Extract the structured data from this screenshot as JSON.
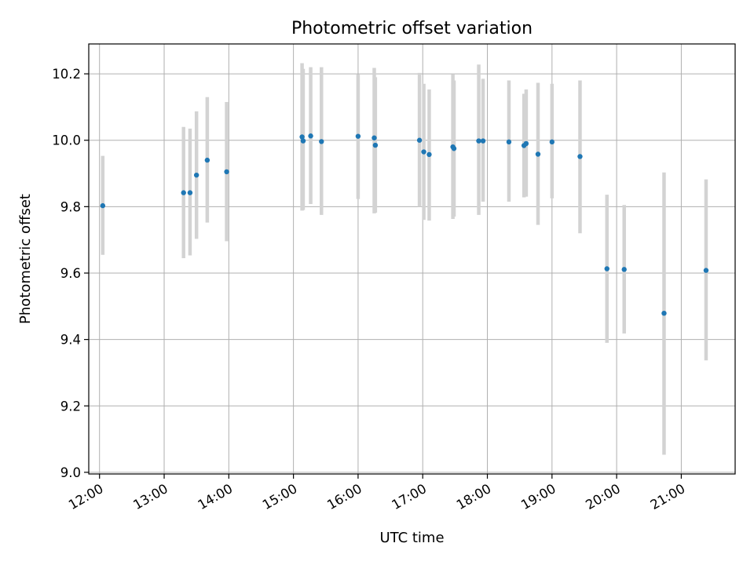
{
  "chart_data": {
    "type": "scatter",
    "title": "Photometric offset variation",
    "xlabel": "UTC time",
    "ylabel": "Photometric offset",
    "xlim": [
      "11:50",
      "21:50"
    ],
    "ylim": [
      8.995,
      10.29
    ],
    "xticks": [
      "12:00",
      "13:00",
      "14:00",
      "15:00",
      "16:00",
      "17:00",
      "18:00",
      "19:00",
      "20:00",
      "21:00"
    ],
    "yticks": [
      9.0,
      9.2,
      9.4,
      9.6,
      9.8,
      10.0,
      10.2
    ],
    "grid": true,
    "point_color": "#1f77b4",
    "errorbar_color": "#d3d3d3",
    "points": [
      {
        "t": "12:03",
        "y": 9.803,
        "lo": 9.655,
        "hi": 9.953
      },
      {
        "t": "13:18",
        "y": 9.842,
        "lo": 9.645,
        "hi": 10.04
      },
      {
        "t": "13:24",
        "y": 9.842,
        "lo": 9.653,
        "hi": 10.035
      },
      {
        "t": "13:30",
        "y": 9.895,
        "lo": 9.703,
        "hi": 10.087
      },
      {
        "t": "13:40",
        "y": 9.94,
        "lo": 9.752,
        "hi": 10.13
      },
      {
        "t": "13:58",
        "y": 9.905,
        "lo": 9.696,
        "hi": 10.115
      },
      {
        "t": "15:08",
        "y": 10.01,
        "lo": 9.788,
        "hi": 10.232
      },
      {
        "t": "15:09",
        "y": 9.998,
        "lo": 9.79,
        "hi": 10.215
      },
      {
        "t": "15:16",
        "y": 10.013,
        "lo": 9.808,
        "hi": 10.22
      },
      {
        "t": "15:26",
        "y": 9.996,
        "lo": 9.775,
        "hi": 10.22
      },
      {
        "t": "16:00",
        "y": 10.012,
        "lo": 9.823,
        "hi": 10.198
      },
      {
        "t": "16:15",
        "y": 10.007,
        "lo": 9.78,
        "hi": 10.218
      },
      {
        "t": "16:16",
        "y": 9.985,
        "lo": 9.782,
        "hi": 10.19
      },
      {
        "t": "16:57",
        "y": 10.0,
        "lo": 9.8,
        "hi": 10.203
      },
      {
        "t": "17:01",
        "y": 9.965,
        "lo": 9.76,
        "hi": 10.17
      },
      {
        "t": "17:06",
        "y": 9.957,
        "lo": 9.758,
        "hi": 10.153
      },
      {
        "t": "17:28",
        "y": 9.98,
        "lo": 9.763,
        "hi": 10.198
      },
      {
        "t": "17:29",
        "y": 9.975,
        "lo": 9.77,
        "hi": 10.18
      },
      {
        "t": "17:52",
        "y": 9.998,
        "lo": 9.775,
        "hi": 10.228
      },
      {
        "t": "17:56",
        "y": 9.998,
        "lo": 9.815,
        "hi": 10.185
      },
      {
        "t": "18:20",
        "y": 9.995,
        "lo": 9.815,
        "hi": 10.18
      },
      {
        "t": "18:34",
        "y": 9.984,
        "lo": 9.828,
        "hi": 10.14
      },
      {
        "t": "18:36",
        "y": 9.99,
        "lo": 9.83,
        "hi": 10.153
      },
      {
        "t": "18:47",
        "y": 9.958,
        "lo": 9.745,
        "hi": 10.173
      },
      {
        "t": "19:00",
        "y": 9.995,
        "lo": 9.825,
        "hi": 10.17
      },
      {
        "t": "19:26",
        "y": 9.951,
        "lo": 9.72,
        "hi": 10.18
      },
      {
        "t": "19:51",
        "y": 9.613,
        "lo": 9.39,
        "hi": 9.836
      },
      {
        "t": "20:07",
        "y": 9.611,
        "lo": 9.418,
        "hi": 9.805
      },
      {
        "t": "20:44",
        "y": 9.479,
        "lo": 9.053,
        "hi": 9.903
      },
      {
        "t": "21:23",
        "y": 9.608,
        "lo": 9.337,
        "hi": 9.882
      }
    ]
  }
}
